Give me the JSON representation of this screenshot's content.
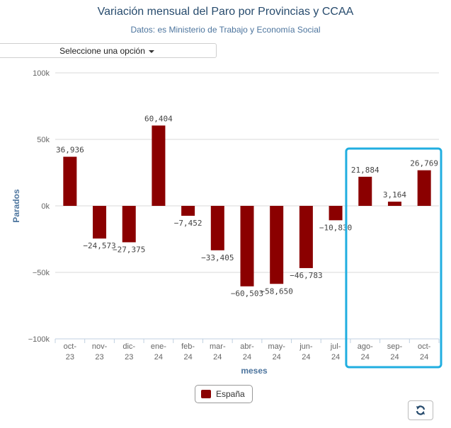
{
  "header": {
    "title": "Variación mensual del Paro por Provincias y CCAA",
    "subtitle": "Datos: es Ministerio de Trabajo y Economía Social"
  },
  "selector": {
    "label": "Seleccione una opción"
  },
  "legend": {
    "label": "España"
  },
  "controls": {
    "refresh_icon": "refresh-icon"
  },
  "colors": {
    "bar": "#8b0000",
    "highlight": "#20aee0",
    "title": "#274b6d",
    "axis_title": "#4d759e"
  },
  "chart_data": {
    "type": "bar",
    "categories": [
      [
        "oct-",
        "23"
      ],
      [
        "nov-",
        "23"
      ],
      [
        "dic-",
        "23"
      ],
      [
        "ene-",
        "24"
      ],
      [
        "feb-",
        "24"
      ],
      [
        "mar-",
        "24"
      ],
      [
        "abr-",
        "24"
      ],
      [
        "may-",
        "24"
      ],
      [
        "jun-",
        "24"
      ],
      [
        "jul-",
        "24"
      ],
      [
        "ago-",
        "24"
      ],
      [
        "sep-",
        "24"
      ],
      [
        "oct-",
        "24"
      ]
    ],
    "series": [
      {
        "name": "España",
        "values": [
          36936,
          -24573,
          -27375,
          60404,
          -7452,
          -33405,
          -60503,
          -58650,
          -46783,
          -10830,
          21884,
          3164,
          26769
        ],
        "labels": [
          "36,936",
          "−24,573",
          "−27,375",
          "60,404",
          "−7,452",
          "−33,405",
          "−60,503",
          "−58,650",
          "−46,783",
          "−10,830",
          "21,884",
          "3,164",
          "26,769"
        ]
      }
    ],
    "ylim": [
      -100000,
      100000
    ],
    "yticks": [
      100000,
      50000,
      0,
      -50000,
      -100000
    ],
    "ytick_labels": [
      "100k",
      "50k",
      "0k",
      "−50k",
      "−100k"
    ],
    "xlabel": "meses",
    "ylabel": "Parados",
    "grid": true,
    "highlighted_categories": [
      10,
      11,
      12
    ]
  }
}
